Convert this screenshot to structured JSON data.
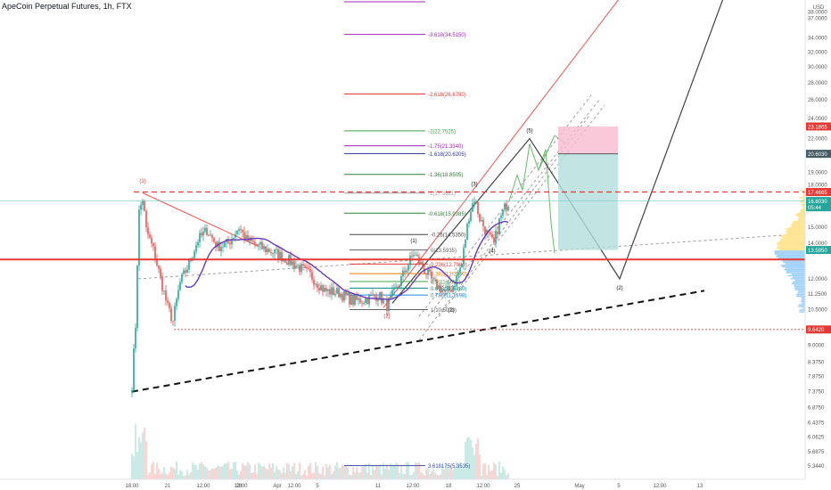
{
  "header": {
    "title": "ApeCoin Perpetual Futures, 1h, FTX"
  },
  "currency": "USD",
  "colors": {
    "up": "#26a69a",
    "down": "#ef5350",
    "ma": "#673ab7",
    "support": "#e53935",
    "target_zone": "#b2dfdb",
    "stop_zone": "#f8bbd0",
    "projection_green": "#66bb6a",
    "projection_dark": "#424242",
    "channel": "#9e9e9e"
  },
  "chart_data": {
    "type": "candlestick",
    "symbol": "ApeCoin Perpetual Futures",
    "interval": "1h",
    "exchange": "FTX",
    "y_axis_ticks": [
      "38.0000",
      "37.0000",
      "34.0000",
      "32.0000",
      "30.0000",
      "28.0000",
      "26.0000",
      "24.0000",
      "22.0000",
      "19.0000",
      "18.0000",
      "15.0000",
      "14.0000",
      "12.0000",
      "11.2500",
      "10.5000",
      "9.0000",
      "8.3750",
      "7.8750",
      "7.3750",
      "6.8750",
      "6.4375",
      "6.0625",
      "5.6875",
      "5.3440",
      "5.0310"
    ],
    "price_tags": [
      {
        "label": "23.1865",
        "kind": "stop"
      },
      {
        "label": "20.6030",
        "kind": "neutral"
      },
      {
        "label": "17.4665",
        "kind": "resistance"
      },
      {
        "label": "16.8030",
        "kind": "last"
      },
      {
        "label": "05:44",
        "kind": "last-time"
      },
      {
        "label": "13.5950",
        "kind": "target"
      },
      {
        "label": "9.6420",
        "kind": "support"
      }
    ],
    "x_axis_ticks": [
      "18:00",
      "21",
      "12:00",
      "28",
      "12:00",
      "Apr",
      "12:00",
      "5",
      "11",
      "12:00",
      "18",
      "12:00",
      "25",
      "May",
      "5",
      "12:00",
      "13"
    ],
    "fib_levels": [
      {
        "label": "-3.618(34.5150)",
        "value": 34.515
      },
      {
        "label": "-2.618(26.6780)",
        "value": 26.678
      },
      {
        "label": "-2(22.7525)",
        "value": 22.7525
      },
      {
        "label": "-1.75(21.3340)",
        "value": 21.334
      },
      {
        "label": "-1.618(20.6205)",
        "value": 20.6205
      },
      {
        "label": "-1.36(18.8505)",
        "value": 18.8505
      },
      {
        "label": "-1(17.3861)",
        "value": 17.3861
      },
      {
        "label": "-0.618(15.9385)",
        "value": 15.9385
      },
      {
        "label": "-0.26(14.5350)",
        "value": 14.535
      },
      {
        "label": "0(13.5935)",
        "value": 13.5935
      },
      {
        "label": "0.236(12.7920)",
        "value": 12.792
      },
      {
        "label": "0.382(12.2750)",
        "value": 12.275
      },
      {
        "label": "0.5(11.8650)",
        "value": 11.865
      },
      {
        "label": "0.618(11.5280)",
        "value": 11.528
      },
      {
        "label": "0.786(11.1898)",
        "value": 11.1898
      },
      {
        "label": "1(10.5070)",
        "value": 10.507
      },
      {
        "label": "3.618175(5.3535)",
        "value": 5.3535
      }
    ],
    "wave_labels": [
      "(1)",
      "(2)",
      "(1)",
      "(2)",
      "(3)",
      "(4)",
      "(5)",
      "(2)"
    ],
    "levels": {
      "resistance": 17.4665,
      "support": 13.595,
      "low": 9.642
    },
    "grid": false,
    "legend": "none"
  }
}
